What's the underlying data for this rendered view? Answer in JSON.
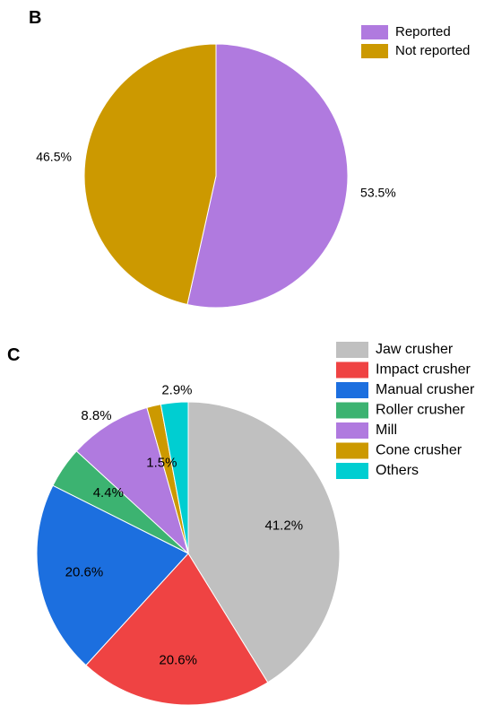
{
  "chart_data": [
    {
      "type": "pie",
      "panel": "B",
      "labels": [
        "Reported",
        "Not reported"
      ],
      "values": [
        53.5,
        46.5
      ],
      "value_labels": [
        "53.5%",
        "46.5%"
      ],
      "colors": [
        "#B07ADF",
        "#CC9900"
      ],
      "legend": "top-right"
    },
    {
      "type": "pie",
      "panel": "C",
      "labels": [
        "Jaw crusher",
        "Impact crusher",
        "Manual crusher",
        "Roller crusher",
        "Mill",
        "Cone crusher",
        "Others"
      ],
      "values": [
        41.2,
        20.6,
        20.6,
        4.4,
        8.8,
        1.5,
        2.9
      ],
      "value_labels": [
        "41.2%",
        "20.6%",
        "20.6%",
        "4.4%",
        "8.8%",
        "1.5%",
        "2.9%"
      ],
      "colors": [
        "#C0C0C0",
        "#EF4343",
        "#1C6FDF",
        "#3CB371",
        "#B07ADF",
        "#CC9900",
        "#00CED1"
      ],
      "legend": "top-right"
    }
  ]
}
